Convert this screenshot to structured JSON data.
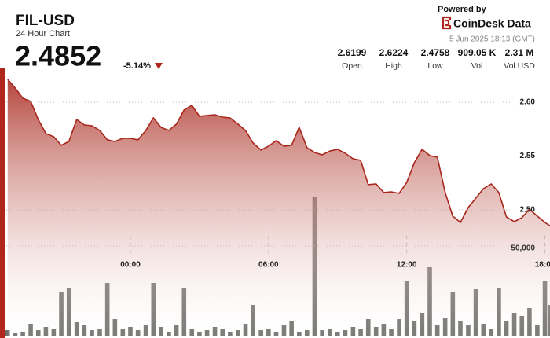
{
  "header": {
    "title": "FIL-USD",
    "subtitle": "24 Hour Chart",
    "price": "2.4852",
    "change": "-5.14%",
    "powered": "Powered by",
    "brand": "CoinDesk Data",
    "timestamp": "5 Jun 2025 18:13 (GMT)"
  },
  "stats": [
    {
      "value": "2.6199",
      "label": "Open"
    },
    {
      "value": "2.6224",
      "label": "High"
    },
    {
      "value": "2.4758",
      "label": "Low"
    },
    {
      "value": "909.05 K",
      "label": "Vol"
    },
    {
      "value": "2.31 M",
      "label": "Vol USD"
    }
  ],
  "chart_data": {
    "type": "line",
    "color": "#a8261b",
    "x": [
      -5.33,
      -5,
      -4.67,
      -4.33,
      -4,
      -3.67,
      -3.33,
      -3,
      -2.67,
      -2.33,
      -2,
      -1.67,
      -1.33,
      -1,
      -0.67,
      -0.33,
      0,
      0.33,
      0.67,
      1,
      1.33,
      1.67,
      2,
      2.33,
      2.67,
      3,
      3.33,
      3.67,
      4,
      4.33,
      4.67,
      5,
      5.33,
      5.67,
      6,
      6.33,
      6.67,
      7,
      7.33,
      7.67,
      8,
      8.33,
      8.67,
      9,
      9.33,
      9.67,
      10,
      10.33,
      10.67,
      11,
      11.33,
      11.67,
      12,
      12.33,
      12.67,
      13,
      13.33,
      13.67,
      14,
      14.33,
      14.67,
      15,
      15.33,
      15.67,
      16,
      16.33,
      16.67,
      17,
      17.33,
      17.67,
      18,
      18.22
    ],
    "values": [
      2.6212,
      2.6131,
      2.6036,
      2.6007,
      2.5839,
      2.5708,
      2.5679,
      2.5599,
      2.5635,
      2.5839,
      2.5788,
      2.5781,
      2.5737,
      2.565,
      2.5635,
      2.5664,
      2.5664,
      2.565,
      2.5737,
      2.5854,
      2.5766,
      2.5737,
      2.5796,
      2.5927,
      2.5971,
      2.5869,
      2.5876,
      2.5883,
      2.5861,
      2.5854,
      2.5796,
      2.5737,
      2.562,
      2.5555,
      2.5591,
      2.5642,
      2.5591,
      2.5599,
      2.5766,
      2.5577,
      2.5533,
      2.5511,
      2.5547,
      2.5562,
      2.5526,
      2.5474,
      2.546,
      2.5234,
      2.5241,
      2.5161,
      2.5168,
      2.5153,
      2.5255,
      2.5438,
      2.5562,
      2.5504,
      2.5489,
      2.5161,
      2.4942,
      2.4883,
      2.5022,
      2.5109,
      2.5197,
      2.5241,
      2.5161,
      2.4934,
      2.4891,
      2.4927,
      2.5007,
      2.4942,
      2.4883,
      2.4852
    ],
    "xlim": [
      -5.39,
      18.22
    ],
    "xticks": [
      {
        "value": 0,
        "label": "00:00"
      },
      {
        "value": 6,
        "label": "06:00"
      },
      {
        "value": 12,
        "label": "12:00"
      },
      {
        "value": 18,
        "label": "18:00"
      }
    ],
    "ylim": [
      2.4628,
      2.6255
    ],
    "yticks": [
      {
        "value": 2.6,
        "label": "2.60"
      },
      2.55,
      {
        "value": 2.5,
        "label": "2.50"
      }
    ],
    "volume": {
      "type": "bar",
      "color": "#5c5c58",
      "values": [
        3570,
        1790,
        2680,
        7140,
        3570,
        5360,
        4460,
        25000,
        27680,
        8040,
        6250,
        3570,
        4460,
        30360,
        9820,
        4460,
        5360,
        3570,
        6250,
        30360,
        5360,
        2680,
        6250,
        27680,
        4460,
        2680,
        3570,
        5360,
        4460,
        2680,
        3570,
        7140,
        17860,
        3570,
        4460,
        2680,
        6250,
        8930,
        2680,
        3570,
        79460,
        3570,
        4460,
        2680,
        3570,
        5360,
        4460,
        9820,
        5360,
        7140,
        4460,
        9820,
        31250,
        8930,
        13390,
        39290,
        6250,
        10710,
        25000,
        8930,
        6250,
        26780,
        7140,
        4460,
        27680,
        8930,
        13390,
        11610,
        16070,
        6250,
        31250,
        17860
      ],
      "ylim": [
        0,
        100000
      ],
      "yticks": [
        {
          "value": 50000,
          "label": "50,000"
        }
      ]
    }
  }
}
